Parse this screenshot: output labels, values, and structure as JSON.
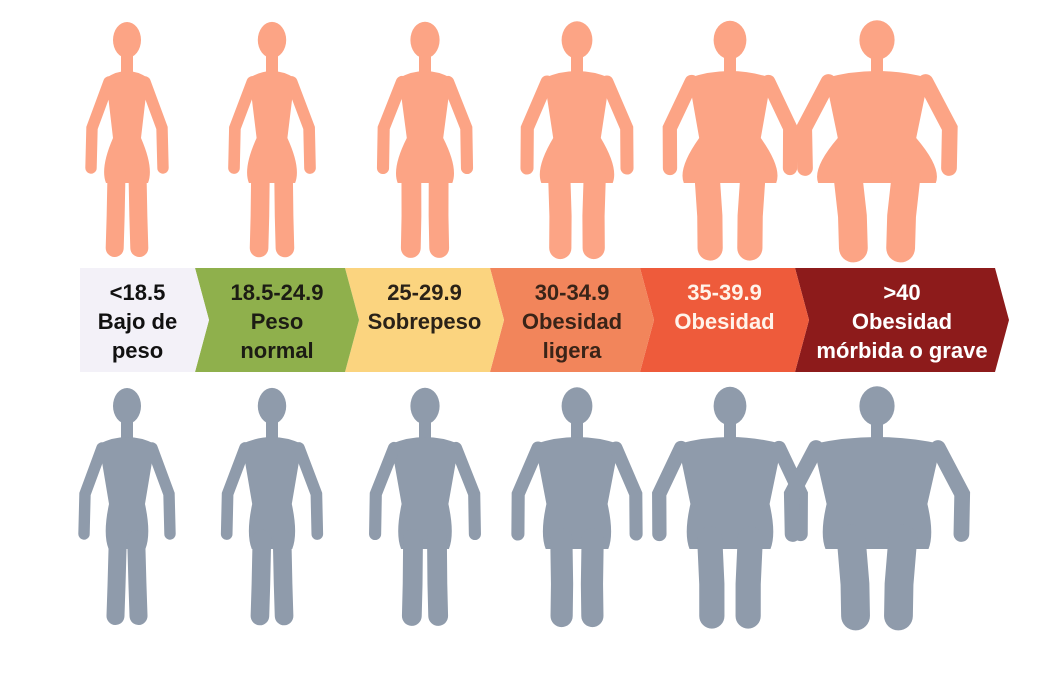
{
  "categories": [
    {
      "range": "<18.5",
      "label": [
        "Bajo de",
        "peso"
      ],
      "color": "#f3f1f8",
      "text_color": "#111111"
    },
    {
      "range": "18.5-24.9",
      "label": [
        "Peso",
        "normal"
      ],
      "color": "#8fb04c",
      "text_color": "#1c1c14"
    },
    {
      "range": "25-29.9",
      "label": [
        "Sobrepeso"
      ],
      "color": "#fbd47f",
      "text_color": "#2a2218"
    },
    {
      "range": "30-34.9",
      "label": [
        "Obesidad",
        "ligera"
      ],
      "color": "#f2855b",
      "text_color": "#3a2418"
    },
    {
      "range": "35-39.9",
      "label": [
        "Obesidad"
      ],
      "color": "#ee5b3b",
      "text_color": "#fff3ea"
    },
    {
      "range": ">40",
      "label": [
        "Obesidad",
        "mórbida o grave"
      ],
      "color": "#8d1b1b",
      "text_color": "#ffffff"
    }
  ]
}
